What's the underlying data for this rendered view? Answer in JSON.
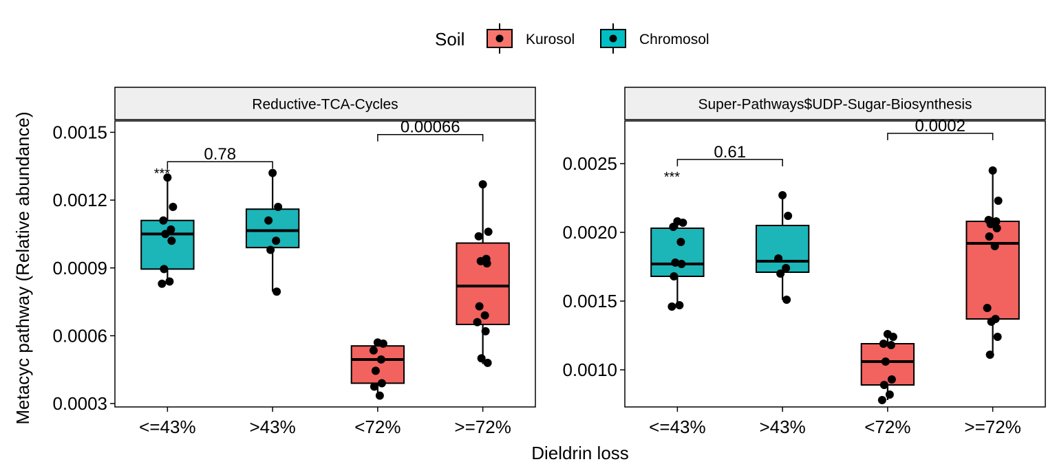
{
  "legend": {
    "title": "Soil",
    "items": [
      {
        "label": "Kurosol",
        "color": "#F8766D"
      },
      {
        "label": "Chromosol",
        "color": "#00BFC4"
      }
    ]
  },
  "ylabel": "Metacyc pathway (Relative abundance)",
  "xlabel": "Dieldrin loss",
  "chart_data": [
    {
      "type": "box",
      "title": "Reductive-TCA-Cycles",
      "categories": [
        "<=43%",
        ">43%",
        "<72%",
        ">=72%"
      ],
      "soil": [
        "Chromosol",
        "Chromosol",
        "Kurosol",
        "Kurosol"
      ],
      "box_colors": [
        "#1CB5B8",
        "#1CB5B8",
        "#F2625E",
        "#F2625E"
      ],
      "yticks": [
        "0.0003",
        "0.0006",
        "0.0009",
        "0.0012",
        "0.0015"
      ],
      "ylim": [
        0.000285,
        0.00155
      ],
      "boxes": [
        {
          "min": 0.00083,
          "q1": 0.000895,
          "median": 0.00105,
          "q3": 0.00111,
          "max": 0.0013
        },
        {
          "min": 0.000795,
          "q1": 0.00099,
          "median": 0.001065,
          "q3": 0.00116,
          "max": 0.00132
        },
        {
          "min": 0.000335,
          "q1": 0.00039,
          "median": 0.000495,
          "q3": 0.000555,
          "max": 0.00057
        },
        {
          "min": 0.000475,
          "q1": 0.00065,
          "median": 0.00082,
          "q3": 0.00101,
          "max": 0.00127
        }
      ],
      "points": [
        [
          0.0013,
          0.00117,
          0.00111,
          0.00107,
          0.00105,
          0.00102,
          0.000895,
          0.00084,
          0.00083
        ],
        [
          0.00132,
          0.00117,
          0.00111,
          0.00102,
          0.00098,
          0.000795
        ],
        [
          0.00057,
          0.000565,
          0.000535,
          0.000495,
          0.000445,
          0.00039,
          0.000375,
          0.000335
        ],
        [
          0.00127,
          0.00106,
          0.00104,
          0.00094,
          0.00093,
          0.00092,
          0.00073,
          0.00069,
          0.00066,
          0.00062,
          0.0005,
          0.00048
        ]
      ],
      "brackets": [
        {
          "from": 0,
          "to": 1,
          "y": 0.00137,
          "label": "0.78"
        },
        {
          "from": 2,
          "to": 3,
          "y": 0.00149,
          "label": "0.00066"
        }
      ],
      "annotation": {
        "category": 0,
        "y": 0.00134,
        "text": "***"
      }
    },
    {
      "type": "box",
      "title": "Super-Pathways$UDP-Sugar-Biosynthesis",
      "categories": [
        "<=43%",
        ">43%",
        "<72%",
        ">=72%"
      ],
      "soil": [
        "Chromosol",
        "Chromosol",
        "Kurosol",
        "Kurosol"
      ],
      "box_colors": [
        "#1CB5B8",
        "#1CB5B8",
        "#F2625E",
        "#F2625E"
      ],
      "yticks": [
        "0.0010",
        "0.0015",
        "0.0020",
        "0.0025"
      ],
      "ylim": [
        0.00073,
        0.00281
      ],
      "boxes": [
        {
          "min": 0.00146,
          "q1": 0.00168,
          "median": 0.00177,
          "q3": 0.00203,
          "max": 0.00209
        },
        {
          "min": 0.00151,
          "q1": 0.00171,
          "median": 0.00179,
          "q3": 0.00205,
          "max": 0.00227
        },
        {
          "min": 0.00078,
          "q1": 0.00089,
          "median": 0.00106,
          "q3": 0.00119,
          "max": 0.00127
        },
        {
          "min": 0.00111,
          "q1": 0.00137,
          "median": 0.00192,
          "q3": 0.00208,
          "max": 0.00245
        }
      ],
      "points": [
        [
          0.00208,
          0.00207,
          0.00204,
          0.00193,
          0.00178,
          0.00177,
          0.00168,
          0.00147,
          0.00146
        ],
        [
          0.00227,
          0.00212,
          0.00181,
          0.00174,
          0.0017,
          0.00151
        ],
        [
          0.00126,
          0.00124,
          0.00119,
          0.00118,
          0.00106,
          0.00093,
          0.00089,
          0.00082,
          0.00078
        ],
        [
          0.00245,
          0.00223,
          0.00209,
          0.00208,
          0.00206,
          0.00203,
          0.00197,
          0.0019,
          0.00145,
          0.00137,
          0.00135,
          0.00124,
          0.00111
        ]
      ],
      "brackets": [
        {
          "from": 0,
          "to": 1,
          "y": 0.00253,
          "label": "0.61"
        },
        {
          "from": 2,
          "to": 3,
          "y": 0.00272,
          "label": "0.0002"
        }
      ],
      "annotation": {
        "category": 0,
        "y": 0.00244,
        "text": "***"
      }
    }
  ]
}
